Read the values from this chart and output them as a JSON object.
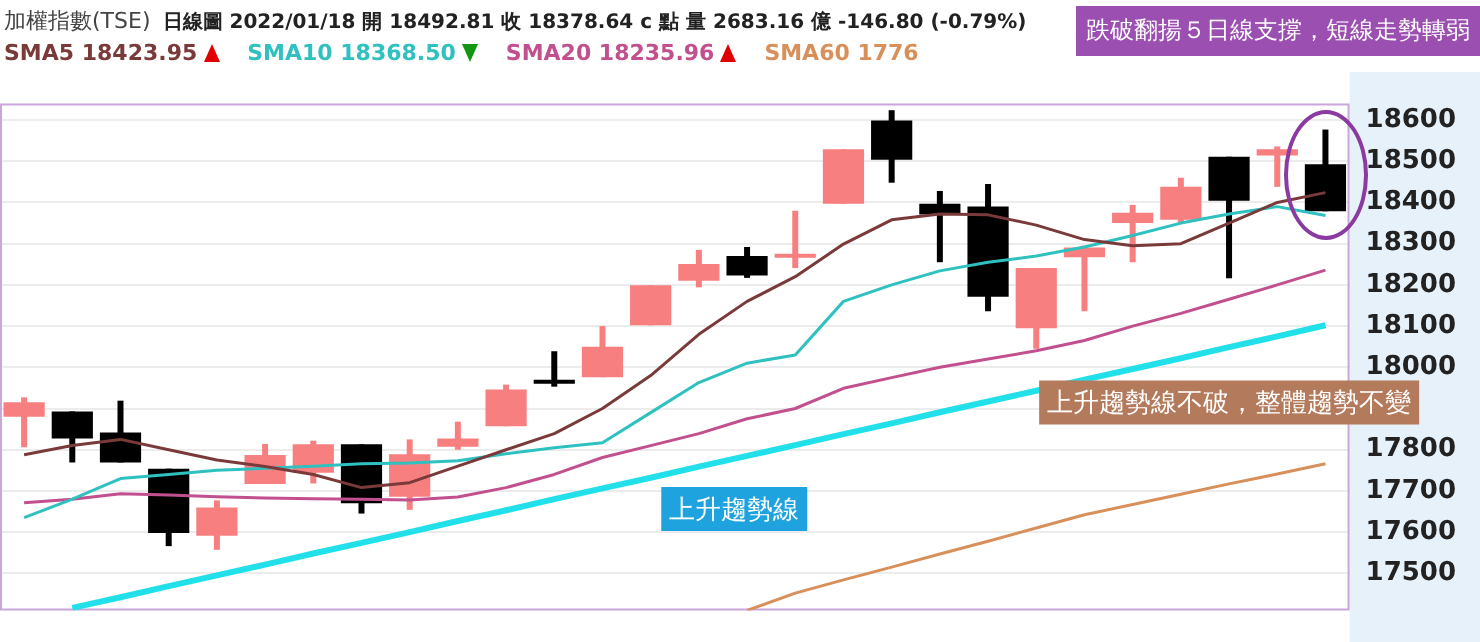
{
  "chart_data": {
    "type": "candlestick",
    "title": "加權指數(TSE)",
    "subtitle": "日線圖 2022/01/18 開 18492.81 收 18378.64 c 點 量 2683.16 億 -146.80 (-0.79%)",
    "categories": [
      null,
      null,
      null,
      null,
      null,
      null,
      null,
      null,
      null,
      null,
      null,
      null,
      null,
      null,
      null,
      null,
      null,
      null,
      null,
      null,
      null,
      null,
      null,
      null,
      null,
      null,
      null,
      null
    ],
    "ohlc": [
      [
        17880,
        17927,
        17806,
        17915
      ],
      [
        17893,
        17893,
        17769,
        17827
      ],
      [
        17842,
        17919,
        17769,
        17769
      ],
      [
        17754,
        17754,
        17566,
        17598
      ],
      [
        17591,
        17677,
        17557,
        17660
      ],
      [
        17717,
        17814,
        17717,
        17787
      ],
      [
        17744,
        17822,
        17718,
        17813
      ],
      [
        17813,
        17813,
        17645,
        17670
      ],
      [
        17686,
        17825,
        17654,
        17789
      ],
      [
        17807,
        17868,
        17800,
        17827
      ],
      [
        17857,
        17958,
        17857,
        17946
      ],
      [
        17965,
        18039,
        17953,
        17960
      ],
      [
        17976,
        18100,
        17976,
        18050
      ],
      [
        18102,
        18199,
        18102,
        18199
      ],
      [
        18210,
        18285,
        18194,
        18251
      ],
      [
        18270,
        18292,
        18217,
        18223
      ],
      [
        18266,
        18380,
        18241,
        18274
      ],
      [
        18397,
        18529,
        18397,
        18529
      ],
      [
        18599,
        18624,
        18448,
        18504
      ],
      [
        18397,
        18428,
        18255,
        18371
      ],
      [
        18390,
        18445,
        18136,
        18171
      ],
      [
        18095,
        18241,
        18045,
        18241
      ],
      [
        18267,
        18295,
        18136,
        18291
      ],
      [
        18350,
        18394,
        18255,
        18375
      ],
      [
        18358,
        18460,
        18350,
        18438
      ],
      [
        18511,
        18511,
        18216,
        18404
      ],
      [
        18514,
        18536,
        18438,
        18529
      ],
      [
        18492.81,
        18577,
        18378.64,
        18378.64
      ]
    ],
    "colors": [
      "#f77f7f",
      "#000000",
      "#000000",
      "#000000",
      "#f77f7f",
      "#f77f7f",
      "#f77f7f",
      "#000000",
      "#f77f7f",
      "#f77f7f",
      "#f77f7f",
      "#000000",
      "#f77f7f",
      "#f77f7f",
      "#f77f7f",
      "#000000",
      "#f77f7f",
      "#f77f7f",
      "#000000",
      "#000000",
      "#000000",
      "#f77f7f",
      "#f77f7f",
      "#f77f7f",
      "#f77f7f",
      "#000000",
      "#f77f7f",
      "#000000"
    ],
    "series": [
      {
        "type": "line",
        "name": "SMA5 18423.95",
        "color": "#7a3a3a",
        "values": [
          17788,
          17810,
          17825,
          17800,
          17775,
          17759,
          17740,
          17708,
          17720,
          17760,
          17800,
          17839,
          17900,
          17980,
          18080,
          18160,
          18220,
          18299,
          18358,
          18372,
          18370,
          18345,
          18310,
          18295,
          18300,
          18350,
          18400,
          18423.95
        ]
      },
      {
        "type": "line",
        "name": "SMA10 18368.50",
        "color": "#2fc0c0",
        "values": [
          17635,
          17680,
          17730,
          17740,
          17750,
          17755,
          17760,
          17766,
          17768,
          17773,
          17790,
          17805,
          17817,
          17890,
          17963,
          18010,
          18030,
          18160,
          18200,
          18234,
          18255,
          18270,
          18292,
          18320,
          18350,
          18372,
          18390,
          18368.5
        ]
      },
      {
        "type": "line",
        "name": "SMA20 18235.96",
        "color": "#c2508f",
        "values": [
          17671,
          17680,
          17693,
          17690,
          17686,
          17683,
          17681,
          17680,
          17678,
          17685,
          17708,
          17740,
          17781,
          17810,
          17839,
          17875,
          17900,
          17949,
          17975,
          18000,
          18020,
          18040,
          18065,
          18100,
          18131,
          18165,
          18200,
          18235.96
        ]
      },
      {
        "type": "line",
        "name": "SMA60 1776",
        "color": "#d8905a",
        "values": [
          null,
          null,
          null,
          null,
          null,
          null,
          null,
          null,
          null,
          null,
          null,
          null,
          null,
          null,
          null,
          17410,
          17452,
          17484,
          17515,
          17547,
          17578,
          17610,
          17642,
          17667,
          17692,
          17717,
          17741,
          17766
        ]
      },
      {
        "type": "line",
        "color": "#22e0ea",
        "values": [
          null,
          17416,
          17442,
          17469,
          17495,
          17521,
          17548,
          17574,
          17600,
          17627,
          17653,
          17680,
          17706,
          17732,
          17759,
          17785,
          17811,
          17838,
          17864,
          17891,
          17917,
          17943,
          17970,
          17996,
          18022,
          18049,
          18075,
          18102
        ]
      }
    ],
    "annotations": [
      "上升趨勢線",
      "上升趨勢線不破，整體趨勢不變",
      "跌破翻揚５日線支撐，短線走勢轉弱"
    ],
    "ylim": [
      17410,
      18640
    ],
    "yticks": [
      17500,
      17600,
      17700,
      17800,
      {
        "value": 17900,
        "label": null
      },
      18000,
      18100,
      18200,
      18300,
      18400,
      18500,
      18600
    ],
    "tick_labels": "y",
    "grid": "y",
    "legend": "top left"
  }
}
